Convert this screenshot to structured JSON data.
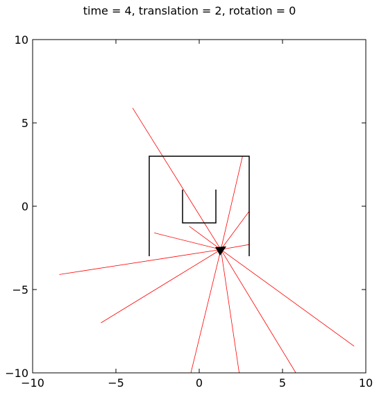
{
  "title": "time = 4, translation = 2, rotation = 0",
  "chart_data": {
    "type": "line",
    "title": "time = 4, translation = 2, rotation = 0",
    "xlabel": "",
    "ylabel": "",
    "xlim": [
      -10,
      10
    ],
    "ylim": [
      -10,
      10
    ],
    "x_ticks": [
      -10,
      -5,
      0,
      5,
      10
    ],
    "y_ticks": [
      -10,
      -5,
      0,
      5,
      10
    ],
    "x_tick_labels": [
      "−10",
      "−5",
      "0",
      "5",
      "10"
    ],
    "y_tick_labels": [
      "−10",
      "−5",
      "0",
      "5",
      "10"
    ],
    "grid": false,
    "walls": [
      {
        "x": [
          -3,
          -3,
          3,
          3
        ],
        "y": [
          -3,
          3,
          3,
          -3
        ]
      },
      {
        "x": [
          -1,
          -1,
          1,
          1
        ],
        "y": [
          1,
          -1,
          -1,
          1
        ]
      }
    ],
    "robot": {
      "x": 1.3,
      "y": -2.6,
      "heading_deg": 30,
      "color": "#000000"
    },
    "ray_color": "#ff0000",
    "wall_color": "#000000",
    "rays": [
      {
        "x": -4.0,
        "y": 5.9
      },
      {
        "x": 2.6,
        "y": 3.0
      },
      {
        "x": 3.0,
        "y": -0.3
      },
      {
        "x": 3.0,
        "y": -2.3
      },
      {
        "x": 9.3,
        "y": -8.4
      },
      {
        "x": 5.8,
        "y": -10.0
      },
      {
        "x": 2.4,
        "y": -10.0
      },
      {
        "x": -0.5,
        "y": -10.0
      },
      {
        "x": -5.9,
        "y": -7.0
      },
      {
        "x": -8.4,
        "y": -4.1
      },
      {
        "x": -2.7,
        "y": -1.6
      },
      {
        "x": -0.6,
        "y": -1.2
      }
    ]
  }
}
